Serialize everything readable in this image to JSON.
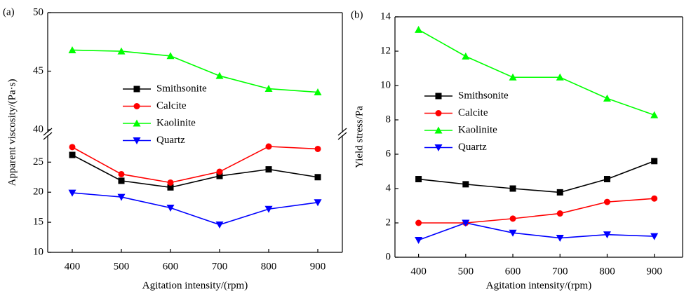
{
  "chart_data": [
    {
      "type": "line",
      "panel_label": "(a)",
      "x_label": "Agitation intensity/(rpm)",
      "y_label": "Apparent viscosity/(Pa·s)",
      "x": [
        400,
        500,
        600,
        700,
        800,
        900
      ],
      "xlim": [
        350,
        950
      ],
      "xticks": [
        400,
        500,
        600,
        700,
        800,
        900
      ],
      "ylim": [
        10,
        50
      ],
      "y_break": [
        29,
        40
      ],
      "yticks": [
        10,
        15,
        20,
        25,
        40,
        45,
        50
      ],
      "series": [
        {
          "name": "Smithsonite",
          "color": "#000000",
          "marker": "square",
          "values": [
            26.2,
            21.9,
            20.8,
            22.7,
            23.8,
            22.5
          ]
        },
        {
          "name": "Calcite",
          "color": "#ff0000",
          "marker": "circle",
          "values": [
            27.5,
            23.0,
            21.6,
            23.4,
            27.6,
            27.2
          ]
        },
        {
          "name": "Kaolinite",
          "color": "#00ff00",
          "marker": "triangle-up",
          "values": [
            46.8,
            46.7,
            46.3,
            44.6,
            43.5,
            43.2
          ]
        },
        {
          "name": "Quartz",
          "color": "#0000ff",
          "marker": "triangle-down",
          "values": [
            19.9,
            19.2,
            17.4,
            14.6,
            17.2,
            18.3
          ]
        }
      ]
    },
    {
      "type": "line",
      "panel_label": "(b)",
      "x_label": "Agitation intensity/(rpm)",
      "y_label": "Yield stress/Pa",
      "x": [
        400,
        500,
        600,
        700,
        800,
        900
      ],
      "xlim": [
        350,
        960
      ],
      "xticks": [
        400,
        500,
        600,
        700,
        800,
        900
      ],
      "ylim": [
        0,
        14
      ],
      "yticks": [
        0,
        2,
        4,
        6,
        8,
        10,
        12,
        14
      ],
      "series": [
        {
          "name": "Smithsonite",
          "color": "#000000",
          "marker": "square",
          "values": [
            4.55,
            4.25,
            4.0,
            3.78,
            4.55,
            5.6
          ]
        },
        {
          "name": "Calcite",
          "color": "#ff0000",
          "marker": "circle",
          "values": [
            2.0,
            2.0,
            2.25,
            2.55,
            3.22,
            3.42
          ]
        },
        {
          "name": "Kaolinite",
          "color": "#00ff00",
          "marker": "triangle-up",
          "values": [
            13.25,
            11.7,
            10.48,
            10.48,
            9.25,
            8.28
          ]
        },
        {
          "name": "Quartz",
          "color": "#0000ff",
          "marker": "triangle-down",
          "values": [
            1.0,
            2.0,
            1.42,
            1.12,
            1.32,
            1.22
          ]
        }
      ]
    }
  ]
}
